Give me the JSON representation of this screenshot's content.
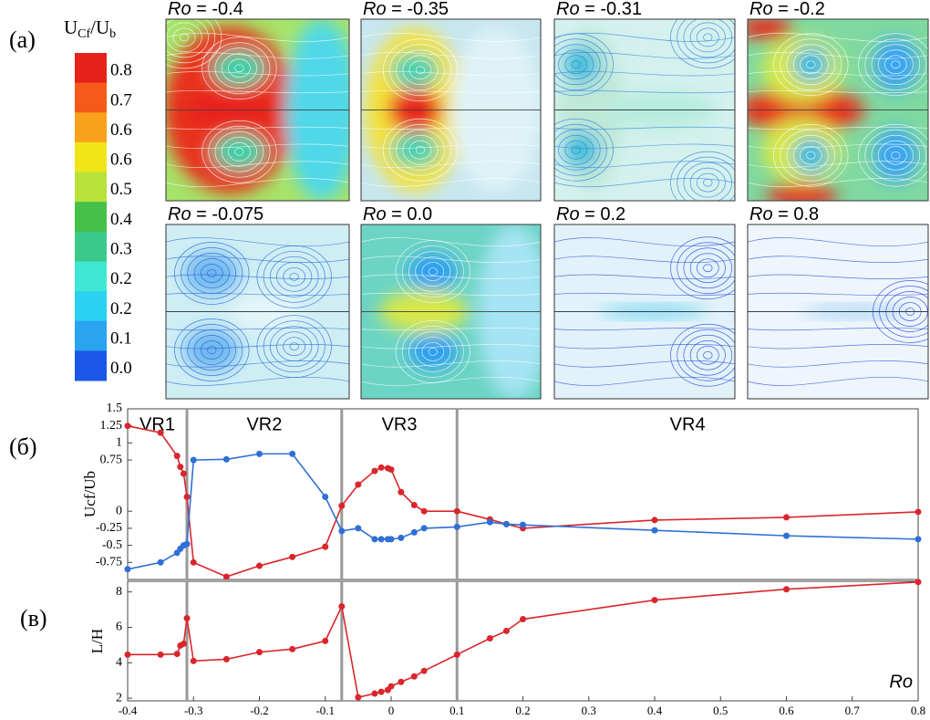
{
  "panel_labels": [
    "(а)",
    "(б)",
    "(в)"
  ],
  "colorbar": {
    "label": {
      "main": "U",
      "sub1": "Cf",
      "slash": "/U",
      "sub2": "b"
    },
    "ticks": [
      "0.8",
      "0.7",
      "0.6",
      "0.6",
      "0.5",
      "0.4",
      "0.3",
      "0.2",
      "0.2",
      "0.1",
      "0.0"
    ],
    "colors": [
      "#e8211d",
      "#f55a1a",
      "#f9a11b",
      "#f0e617",
      "#b8e23a",
      "#47c04a",
      "#3bc98a",
      "#3ee8d4",
      "#2ad1f2",
      "#2aa4f0",
      "#1b58e8"
    ]
  },
  "flow_panels": [
    {
      "symbol": "Ro",
      "value": " = -0.4"
    },
    {
      "symbol": "Ro",
      "value": " = -0.35"
    },
    {
      "symbol": "Ro",
      "value": " = -0.31"
    },
    {
      "symbol": "Ro",
      "value": " = -0.2"
    },
    {
      "symbol": "Ro",
      "value": " = -0.075"
    },
    {
      "symbol": "Ro",
      "value": " = 0.0"
    },
    {
      "symbol": "Ro",
      "value": " = 0.2"
    },
    {
      "symbol": "Ro",
      "value": " = 0.8"
    }
  ],
  "chart_data": [
    {
      "type": "line",
      "y_label": "Ucf/Ub",
      "x": [
        -0.4,
        -0.35,
        -0.325,
        -0.32,
        -0.315,
        -0.31,
        -0.3,
        -0.25,
        -0.2,
        -0.15,
        -0.1,
        -0.075,
        -0.05,
        -0.025,
        -0.015,
        -0.005,
        0,
        0.015,
        0.035,
        0.05,
        0.1,
        0.15,
        0.175,
        0.2,
        0.4,
        0.6,
        0.8
      ],
      "series": [
        {
          "color": "#d9262c",
          "values": [
            1.25,
            1.15,
            0.81,
            0.65,
            0.55,
            0.21,
            -0.75,
            -0.96,
            -0.8,
            -0.67,
            -0.52,
            0.08,
            0.39,
            0.59,
            0.64,
            0.63,
            0.61,
            0.28,
            0.09,
            0,
            0,
            -0.12,
            -0.19,
            -0.25,
            -0.13,
            -0.09,
            -0.01
          ]
        },
        {
          "color": "#2f6fd6",
          "values": [
            -0.85,
            -0.75,
            -0.61,
            -0.55,
            -0.5,
            -0.48,
            0.75,
            0.76,
            0.84,
            0.84,
            0.21,
            -0.29,
            -0.25,
            -0.41,
            -0.41,
            -0.41,
            -0.41,
            -0.39,
            -0.31,
            -0.25,
            -0.23,
            -0.16,
            -0.19,
            -0.2,
            -0.28,
            -0.36,
            -0.41
          ]
        }
      ],
      "xlim": [
        -0.4,
        0.8
      ],
      "ylim": [
        -1,
        1.5
      ],
      "yticks": [
        1.5,
        1.25,
        1,
        0.75,
        0,
        -0.25,
        -0.5,
        -0.75
      ],
      "vlines": [
        -0.31,
        -0.075,
        0.1
      ],
      "regions": [
        "VR1",
        "VR2",
        "VR3",
        "VR4"
      ]
    },
    {
      "type": "line",
      "y_label": "L/H",
      "x_label": "Ro",
      "x": [
        -0.4,
        -0.35,
        -0.325,
        -0.32,
        -0.315,
        -0.31,
        -0.3,
        -0.25,
        -0.2,
        -0.15,
        -0.1,
        -0.075,
        -0.05,
        -0.025,
        -0.015,
        -0.005,
        0,
        0.015,
        0.035,
        0.05,
        0.1,
        0.15,
        0.175,
        0.2,
        0.4,
        0.6,
        0.8
      ],
      "series": [
        {
          "color": "#d9262c",
          "values": [
            4.46,
            4.46,
            4.5,
            4.97,
            5.08,
            6.51,
            4.1,
            4.2,
            4.6,
            4.77,
            5.23,
            7.18,
            2.05,
            2.26,
            2.36,
            2.46,
            2.67,
            2.92,
            3.23,
            3.54,
            4.46,
            5.38,
            5.8,
            6.46,
            7.54,
            8.15,
            8.56
          ]
        }
      ],
      "xlim": [
        -0.4,
        0.8
      ],
      "ylim": [
        1.85,
        8.6
      ],
      "xticks": [
        -0.4,
        -0.3,
        -0.2,
        -0.1,
        0,
        0.1,
        0.2,
        0.3,
        0.4,
        0.5,
        0.6,
        0.7,
        0.8
      ],
      "yticks": [
        2,
        4,
        6,
        8
      ],
      "vlines": [
        -0.31,
        -0.075,
        0.1
      ]
    }
  ]
}
